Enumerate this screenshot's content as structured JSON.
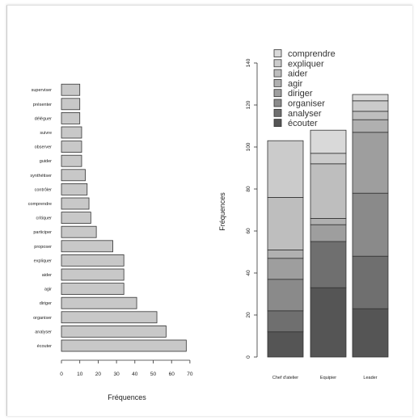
{
  "chart_data": [
    {
      "type": "bar",
      "orientation": "horizontal",
      "categories": [
        "écouter",
        "analyser",
        "organiser",
        "diriger",
        "agir",
        "aider",
        "expliquer",
        "proposer",
        "participer",
        "critiquer",
        "comprendre",
        "contrôler",
        "synthétiser",
        "guider",
        "observer",
        "suivre",
        "déléguer",
        "présenter",
        "superviser"
      ],
      "values": [
        68,
        57,
        52,
        41,
        34,
        34,
        34,
        28,
        19,
        16,
        15,
        14,
        13,
        11,
        11,
        11,
        10,
        10,
        10
      ],
      "title": "",
      "xlabel": "Fréquences",
      "ylabel": "",
      "xlim": [
        0,
        70
      ],
      "x_ticks": [
        "0",
        "10",
        "20",
        "30",
        "40",
        "50",
        "60",
        "70"
      ],
      "color": "#c8c8c8",
      "grid": false
    },
    {
      "type": "bar",
      "stacked": true,
      "categories": [
        "Chef d'atelier",
        "Equipier",
        "Leader"
      ],
      "series": [
        {
          "name": "écouter",
          "color": "#555555",
          "values": [
            12,
            33,
            23
          ]
        },
        {
          "name": "analyser",
          "color": "#6f6f6f",
          "values": [
            10,
            22,
            25
          ]
        },
        {
          "name": "organiser",
          "color": "#8a8a8a",
          "values": [
            15,
            0,
            30
          ]
        },
        {
          "name": "diriger",
          "color": "#9e9e9e",
          "values": [
            10,
            8,
            29
          ]
        },
        {
          "name": "agir",
          "color": "#b0b0b0",
          "values": [
            4,
            3,
            6
          ]
        },
        {
          "name": "aider",
          "color": "#bebebe",
          "values": [
            25,
            26,
            4
          ]
        },
        {
          "name": "expliquer",
          "color": "#cbcbcb",
          "values": [
            27,
            5,
            5
          ]
        },
        {
          "name": "comprendre",
          "color": "#d9d9d9",
          "values": [
            0,
            11,
            3
          ]
        }
      ],
      "title": "",
      "xlabel": "",
      "ylabel": "Fréquences",
      "ylim": [
        0,
        140
      ],
      "y_ticks": [
        "0",
        "20",
        "40",
        "60",
        "80",
        "100",
        "120",
        "140"
      ],
      "legend_order": [
        "comprendre",
        "expliquer",
        "aider",
        "agir",
        "diriger",
        "organiser",
        "analyser",
        "écouter"
      ],
      "legend_position": "top-left",
      "grid": false
    }
  ]
}
